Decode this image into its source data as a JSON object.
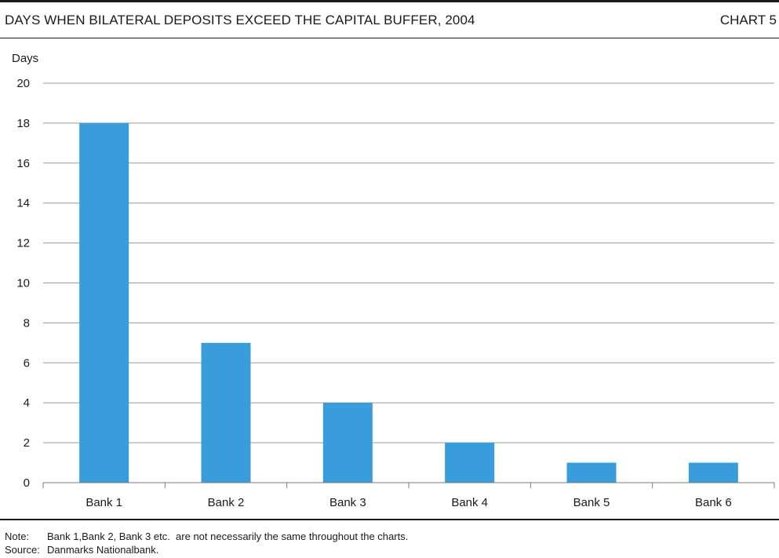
{
  "header": {
    "title": "DAYS WHEN BILATERAL DEPOSITS EXCEED THE CAPITAL BUFFER, 2004",
    "chart_number": "CHART 5"
  },
  "footer": {
    "note_label": "Note:",
    "note_text": "Bank 1,Bank 2, Bank 3 etc.  are not necessarily the same throughout the charts.",
    "source_label": "Source:",
    "source_text": "Danmarks Nationalbank."
  },
  "colors": {
    "bar": "#3a9ddb",
    "grid": "#9a9a9a",
    "axis": "#7a7a7a",
    "text": "#1a1a1a"
  },
  "chart_data": {
    "type": "bar",
    "title": "DAYS WHEN BILATERAL DEPOSITS EXCEED THE CAPITAL BUFFER, 2004",
    "ylabel": "Days",
    "xlabel": "",
    "categories": [
      "Bank 1",
      "Bank 2",
      "Bank 3",
      "Bank 4",
      "Bank 5",
      "Bank 6"
    ],
    "values": [
      18,
      7,
      4,
      2,
      1,
      1
    ],
    "ylim": [
      0,
      20
    ],
    "yticks": [
      0,
      2,
      4,
      6,
      8,
      10,
      12,
      14,
      16,
      18,
      20
    ],
    "grid": true,
    "legend": "none"
  }
}
